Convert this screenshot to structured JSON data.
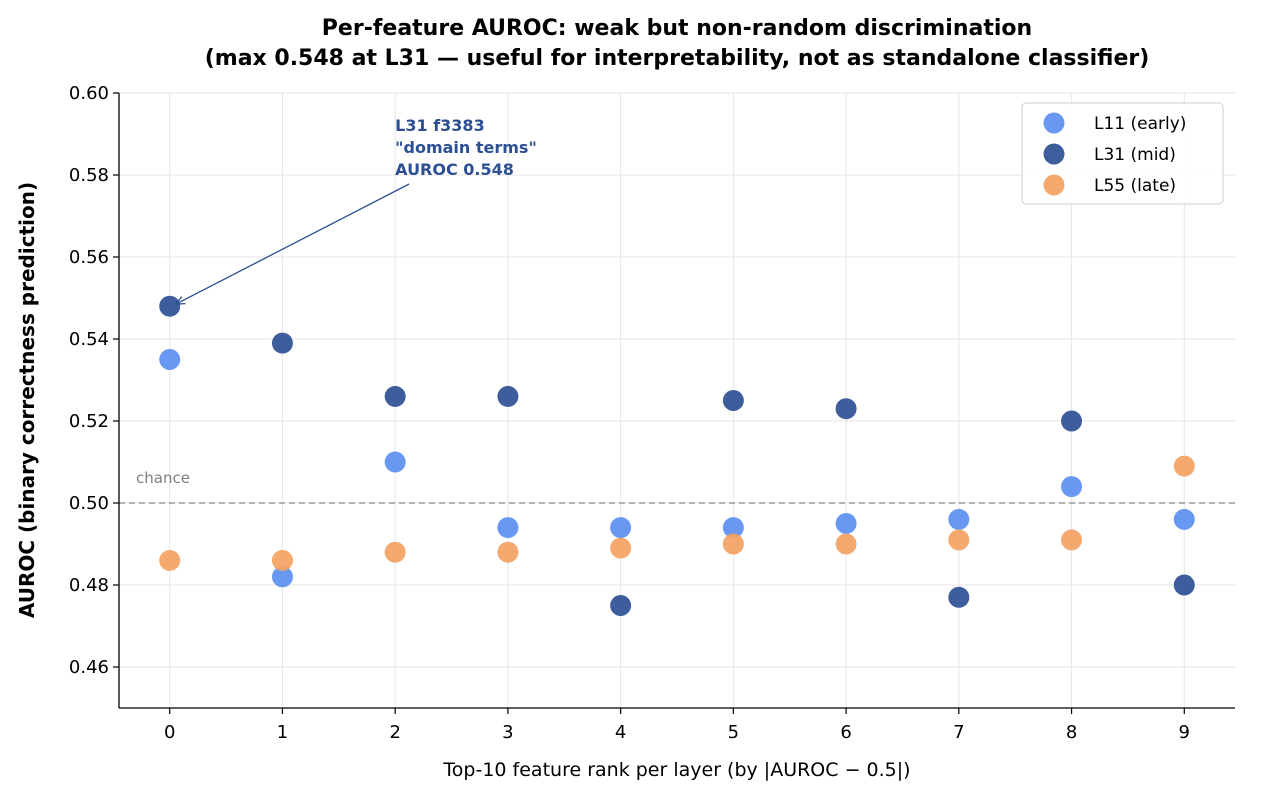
{
  "chart_data": {
    "type": "scatter",
    "title": [
      "Per-feature AUROC: weak but non-random discrimination",
      "(max 0.548 at L31 — useful for interpretability, not as standalone classifier)"
    ],
    "xlabel": "Top-10 feature rank per layer (by |AUROC − 0.5|)",
    "ylabel": "AUROC (binary correctness prediction)",
    "xlim": [
      -0.45,
      9.45
    ],
    "ylim": [
      0.45,
      0.6
    ],
    "x_ticks": [
      "0",
      "1",
      "2",
      "3",
      "4",
      "5",
      "6",
      "7",
      "8",
      "9"
    ],
    "y_ticks": [
      "0.46",
      "0.48",
      "0.50",
      "0.52",
      "0.54",
      "0.56",
      "0.58",
      "0.60"
    ],
    "y_tick_values": [
      0.46,
      0.48,
      0.5,
      0.52,
      0.54,
      0.56,
      0.58,
      0.6
    ],
    "grid": true,
    "legend_position": "top-right",
    "x": [
      0,
      1,
      2,
      3,
      4,
      5,
      6,
      7,
      8,
      9
    ],
    "series": [
      {
        "name": "L11 (early)",
        "color": "#5b8ff0",
        "values": [
          0.535,
          0.482,
          0.51,
          0.494,
          0.494,
          0.494,
          0.495,
          0.496,
          0.504,
          0.496
        ]
      },
      {
        "name": "L31 (mid)",
        "color": "#2c4f94",
        "values": [
          0.548,
          0.539,
          0.526,
          0.526,
          0.475,
          0.525,
          0.523,
          0.477,
          0.52,
          0.48
        ]
      },
      {
        "name": "L55 (late)",
        "color": "#f4a263",
        "values": [
          0.486,
          0.486,
          0.488,
          0.488,
          0.489,
          0.49,
          0.49,
          0.491,
          0.491,
          0.509
        ]
      }
    ],
    "reference_line": {
      "y": 0.5,
      "label": "chance",
      "color": "#999999"
    },
    "annotation": {
      "lines": [
        "L31 f3383",
        "\"domain terms\"",
        "AUROC 0.548"
      ],
      "text_at": [
        2.0,
        0.589
      ],
      "point": [
        0,
        0.548
      ],
      "color": "#2c4f94"
    }
  }
}
